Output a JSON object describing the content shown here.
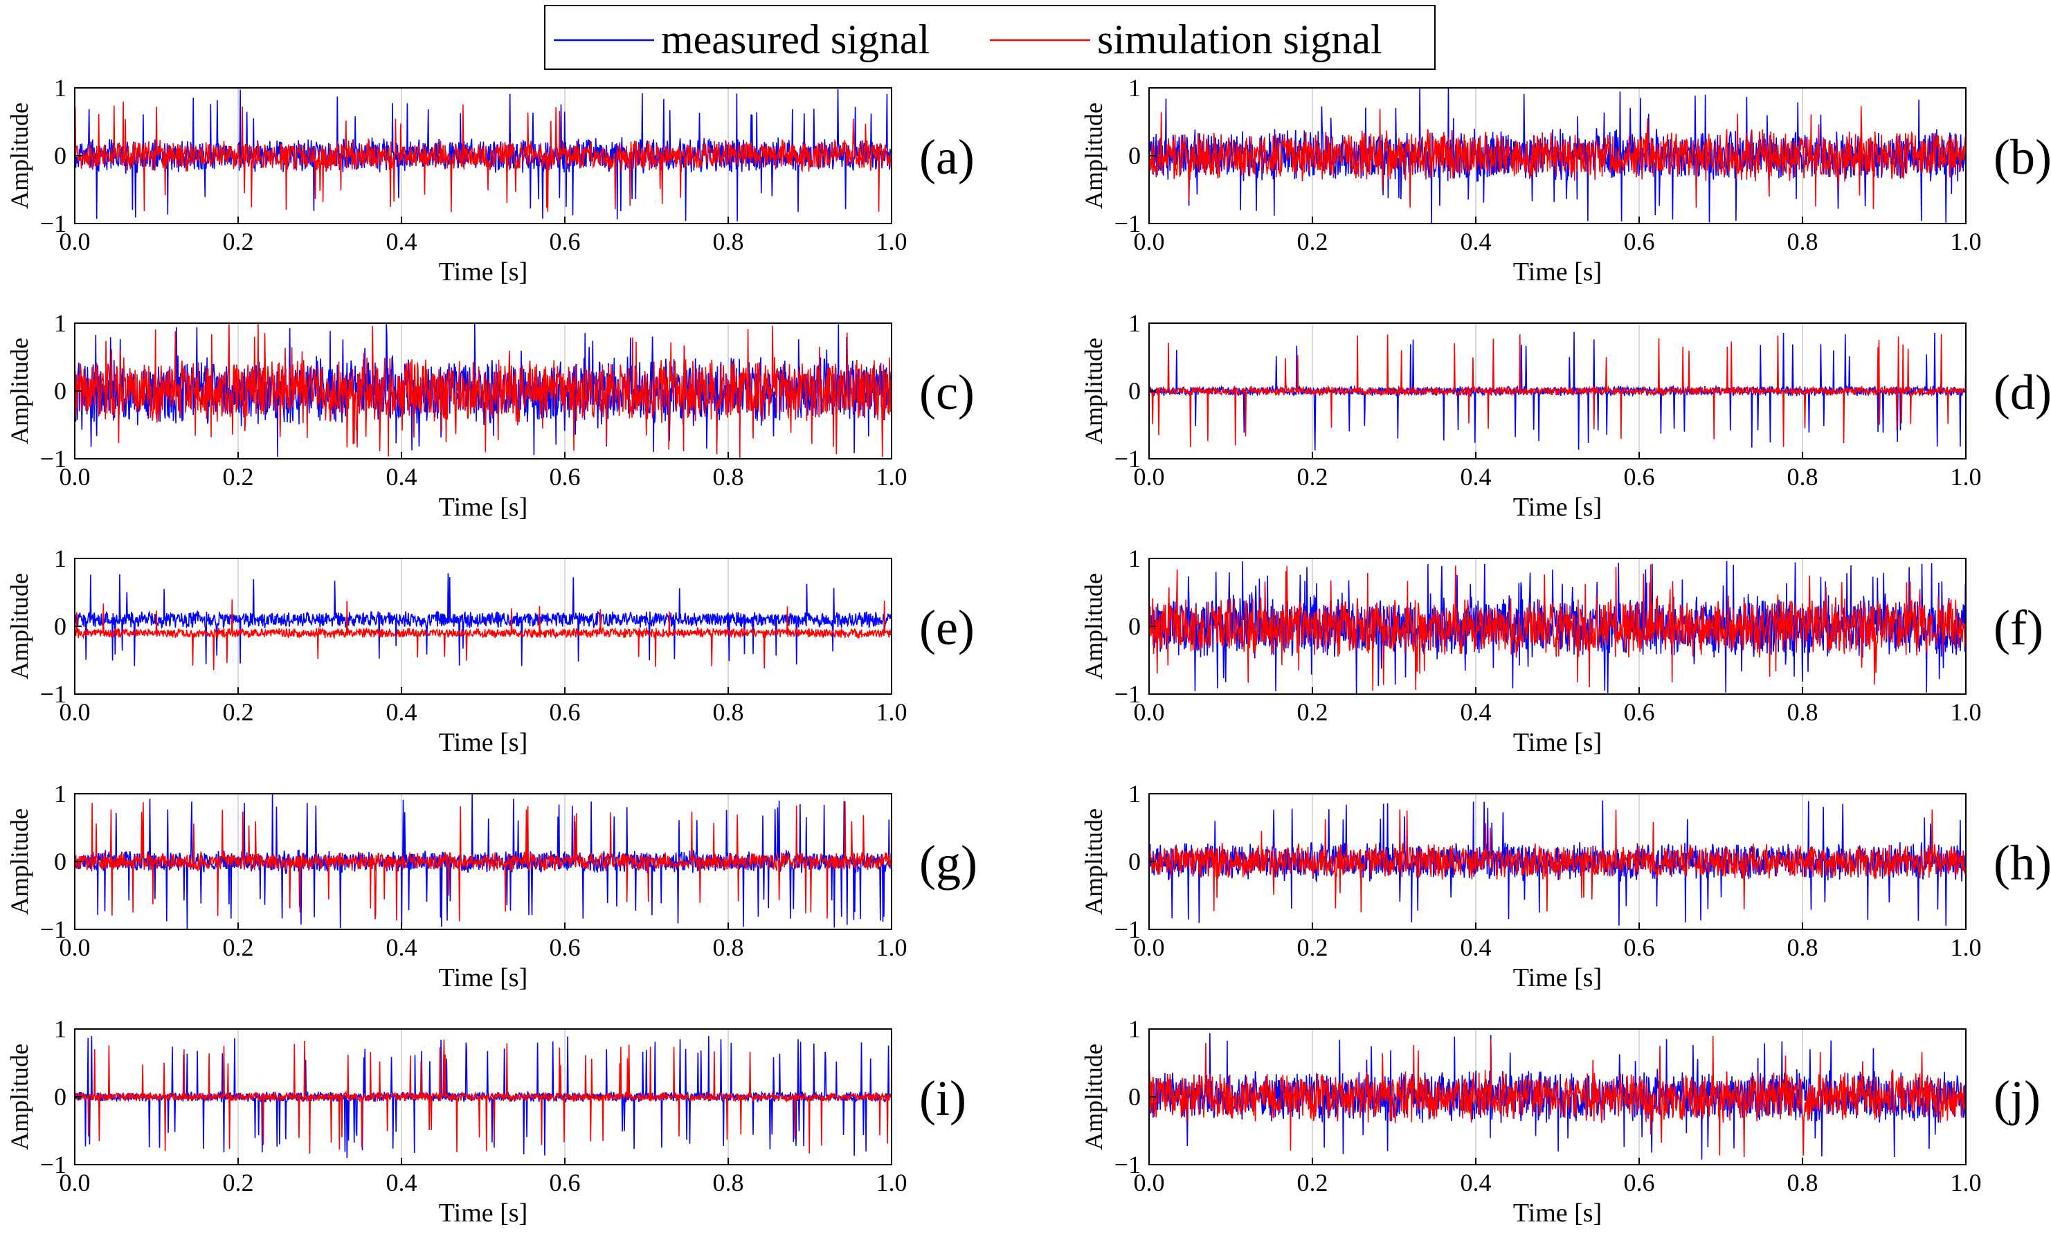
{
  "legend": {
    "entries": [
      {
        "label": "measured signal",
        "color": "#0000ff"
      },
      {
        "label": "simulation signal",
        "color": "#ff0000"
      }
    ]
  },
  "chart_data": [
    {
      "id": "a",
      "panel_label": "(a)",
      "type": "line",
      "xlabel": "Time [s]",
      "ylabel": "Amplitude",
      "xlim": [
        0,
        1
      ],
      "ylim": [
        -1,
        1
      ],
      "xticks": [
        "0.0",
        "0.2",
        "0.4",
        "0.6",
        "0.8",
        "1.0"
      ],
      "yticks": [
        "-1",
        "0",
        "1"
      ],
      "series": [
        {
          "name": "measured signal",
          "color": "#0000ff",
          "offset": 0,
          "noise": 0.28,
          "spike_rate": 0.04,
          "spike_amp": 1.0,
          "seed": 11
        },
        {
          "name": "simulation signal",
          "color": "#ff0000",
          "offset": 0,
          "noise": 0.25,
          "spike_rate": 0.025,
          "spike_amp": 0.85,
          "seed": 12
        }
      ]
    },
    {
      "id": "b",
      "panel_label": "(b)",
      "type": "line",
      "xlabel": "Time [s]",
      "ylabel": "Amplitude",
      "xlim": [
        0,
        1
      ],
      "ylim": [
        -1,
        1
      ],
      "xticks": [
        "0.0",
        "0.2",
        "0.4",
        "0.6",
        "0.8",
        "1.0"
      ],
      "yticks": [
        "-1",
        "0",
        "1"
      ],
      "series": [
        {
          "name": "measured signal",
          "color": "#0000ff",
          "offset": 0,
          "noise": 0.42,
          "spike_rate": 0.03,
          "spike_amp": 1.0,
          "seed": 21
        },
        {
          "name": "simulation signal",
          "color": "#ff0000",
          "offset": 0,
          "noise": 0.4,
          "spike_rate": 0.01,
          "spike_amp": 0.8,
          "seed": 22
        }
      ]
    },
    {
      "id": "c",
      "panel_label": "(c)",
      "type": "line",
      "xlabel": "Time [s]",
      "ylabel": "Amplitude",
      "xlim": [
        0,
        1
      ],
      "ylim": [
        -1,
        1
      ],
      "xticks": [
        "0.0",
        "0.2",
        "0.4",
        "0.6",
        "0.8",
        "1.0"
      ],
      "yticks": [
        "-1",
        "0",
        "1"
      ],
      "series": [
        {
          "name": "measured signal",
          "color": "#0000ff",
          "offset": 0,
          "noise": 0.55,
          "spike_rate": 0.03,
          "spike_amp": 1.0,
          "seed": 31
        },
        {
          "name": "simulation signal",
          "color": "#ff0000",
          "offset": 0,
          "noise": 0.52,
          "spike_rate": 0.03,
          "spike_amp": 1.0,
          "seed": 32
        }
      ]
    },
    {
      "id": "d",
      "panel_label": "(d)",
      "type": "line",
      "xlabel": "Time [s]",
      "ylabel": "Amplitude",
      "xlim": [
        0,
        1
      ],
      "ylim": [
        -1,
        1
      ],
      "xticks": [
        "0.0",
        "0.2",
        "0.4",
        "0.6",
        "0.8",
        "1.0"
      ],
      "yticks": [
        "-1",
        "0",
        "1"
      ],
      "series": [
        {
          "name": "measured signal",
          "color": "#0000ff",
          "offset": 0,
          "noise": 0.08,
          "spike_rate": 0.035,
          "spike_amp": 0.9,
          "seed": 41
        },
        {
          "name": "simulation signal",
          "color": "#ff0000",
          "offset": 0,
          "noise": 0.07,
          "spike_rate": 0.035,
          "spike_amp": 0.85,
          "seed": 42
        }
      ]
    },
    {
      "id": "e",
      "panel_label": "(e)",
      "type": "line",
      "xlabel": "Time [s]",
      "ylabel": "Amplitude",
      "xlim": [
        0,
        1
      ],
      "ylim": [
        -1,
        1
      ],
      "xticks": [
        "0.0",
        "0.2",
        "0.4",
        "0.6",
        "0.8",
        "1.0"
      ],
      "yticks": [
        "-1",
        "0",
        "1"
      ],
      "series": [
        {
          "name": "measured signal",
          "color": "#0000ff",
          "offset": 0.1,
          "noise": 0.13,
          "spike_rate": 0.02,
          "spike_amp": 0.7,
          "seed": 51
        },
        {
          "name": "simulation signal",
          "color": "#ff0000",
          "offset": -0.1,
          "noise": 0.08,
          "spike_rate": 0.01,
          "spike_amp": 0.55,
          "seed": 52
        }
      ]
    },
    {
      "id": "f",
      "panel_label": "(f)",
      "type": "line",
      "xlabel": "Time [s]",
      "ylabel": "Amplitude",
      "xlim": [
        0,
        1
      ],
      "ylim": [
        -1,
        1
      ],
      "xticks": [
        "0.0",
        "0.2",
        "0.4",
        "0.6",
        "0.8",
        "1.0"
      ],
      "yticks": [
        "-1",
        "0",
        "1"
      ],
      "series": [
        {
          "name": "measured signal",
          "color": "#0000ff",
          "offset": 0,
          "noise": 0.5,
          "spike_rate": 0.06,
          "spike_amp": 1.0,
          "seed": 61
        },
        {
          "name": "simulation signal",
          "color": "#ff0000",
          "offset": 0,
          "noise": 0.48,
          "spike_rate": 0.02,
          "spike_amp": 0.95,
          "seed": 62
        }
      ]
    },
    {
      "id": "g",
      "panel_label": "(g)",
      "type": "line",
      "xlabel": "Time [s]",
      "ylabel": "Amplitude",
      "xlim": [
        0,
        1
      ],
      "ylim": [
        -1,
        1
      ],
      "xticks": [
        "0.0",
        "0.2",
        "0.4",
        "0.6",
        "0.8",
        "1.0"
      ],
      "yticks": [
        "-1",
        "0",
        "1"
      ],
      "series": [
        {
          "name": "measured signal",
          "color": "#0000ff",
          "offset": 0,
          "noise": 0.18,
          "spike_rate": 0.05,
          "spike_amp": 1.0,
          "seed": 71
        },
        {
          "name": "simulation signal",
          "color": "#ff0000",
          "offset": 0,
          "noise": 0.15,
          "spike_rate": 0.03,
          "spike_amp": 0.9,
          "seed": 72
        }
      ]
    },
    {
      "id": "h",
      "panel_label": "(h)",
      "type": "line",
      "xlabel": "Time [s]",
      "ylabel": "Amplitude",
      "xlim": [
        0,
        1
      ],
      "ylim": [
        -1,
        1
      ],
      "xticks": [
        "0.0",
        "0.2",
        "0.4",
        "0.6",
        "0.8",
        "1.0"
      ],
      "yticks": [
        "-1",
        "0",
        "1"
      ],
      "series": [
        {
          "name": "measured signal",
          "color": "#0000ff",
          "offset": 0,
          "noise": 0.3,
          "spike_rate": 0.03,
          "spike_amp": 0.95,
          "seed": 81
        },
        {
          "name": "simulation signal",
          "color": "#ff0000",
          "offset": 0,
          "noise": 0.28,
          "spike_rate": 0.01,
          "spike_amp": 0.8,
          "seed": 82
        }
      ]
    },
    {
      "id": "i",
      "panel_label": "(i)",
      "type": "line",
      "xlabel": "Time [s]",
      "ylabel": "Amplitude",
      "xlim": [
        0,
        1
      ],
      "ylim": [
        -1,
        1
      ],
      "xticks": [
        "0.0",
        "0.2",
        "0.4",
        "0.6",
        "0.8",
        "1.0"
      ],
      "yticks": [
        "-1",
        "0",
        "1"
      ],
      "series": [
        {
          "name": "measured signal",
          "color": "#0000ff",
          "offset": 0,
          "noise": 0.08,
          "spike_rate": 0.05,
          "spike_amp": 0.9,
          "seed": 91
        },
        {
          "name": "simulation signal",
          "color": "#ff0000",
          "offset": 0,
          "noise": 0.07,
          "spike_rate": 0.03,
          "spike_amp": 0.85,
          "seed": 92
        }
      ]
    },
    {
      "id": "j",
      "panel_label": "(j)",
      "type": "line",
      "xlabel": "Time [s]",
      "ylabel": "Amplitude",
      "xlim": [
        0,
        1
      ],
      "ylim": [
        -1,
        1
      ],
      "xticks": [
        "0.0",
        "0.2",
        "0.4",
        "0.6",
        "0.8",
        "1.0"
      ],
      "yticks": [
        "-1",
        "0",
        "1"
      ],
      "series": [
        {
          "name": "measured signal",
          "color": "#0000ff",
          "offset": 0,
          "noise": 0.42,
          "spike_rate": 0.02,
          "spike_amp": 0.95,
          "seed": 101
        },
        {
          "name": "simulation signal",
          "color": "#ff0000",
          "offset": 0,
          "noise": 0.4,
          "spike_rate": 0.01,
          "spike_amp": 0.9,
          "seed": 102
        }
      ]
    }
  ]
}
